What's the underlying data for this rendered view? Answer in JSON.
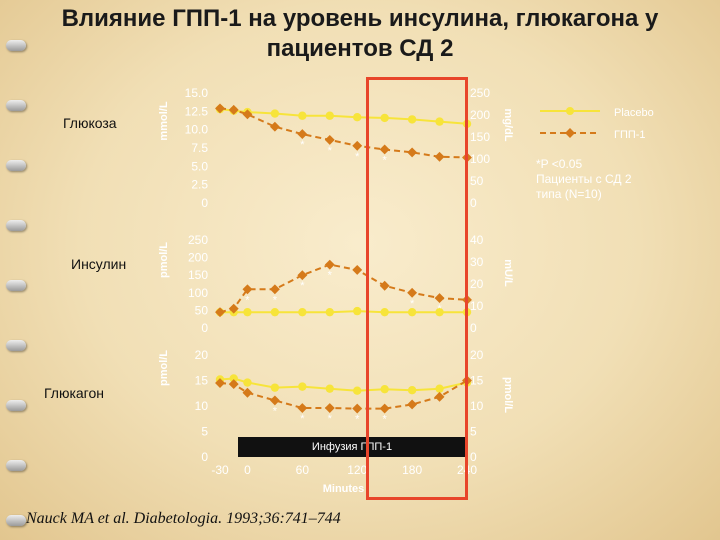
{
  "title": "Влияние ГПП-1 на уровень инсулина, глюкагона у пациентов СД 2",
  "legend": {
    "placebo": "Placebo",
    "glp1": "ГПП-1"
  },
  "note": {
    "pvalue": "*P <0.05",
    "patients1": "Пациенты с СД 2",
    "patients2": "типа (N=10)"
  },
  "infusion_label": "Инфузия ГПП-1",
  "citation": "Nauck MA et al. Diabetologia. 1993;36:741–744",
  "colors": {
    "placebo": "#f7e43a",
    "glp1": "#d57a1a",
    "highlight": "#e8452a",
    "axis_text": "#ffffff"
  },
  "chart_data": [
    {
      "type": "line",
      "row_label": "Глюкоза",
      "ylabel": "mmol/L",
      "ylabel_right": "mg/dL",
      "yticks": [
        "15.0",
        "12.5",
        "10.0",
        "7.5",
        "5.0",
        "2.5",
        "0"
      ],
      "yticks_right": [
        "250",
        "200",
        "150",
        "100",
        "50",
        "0"
      ],
      "ylim": [
        0,
        15
      ],
      "x": [
        -30,
        -15,
        0,
        30,
        60,
        90,
        120,
        150,
        180,
        210,
        240
      ],
      "series": [
        {
          "name": "Placebo",
          "values": [
            12.8,
            12.6,
            12.4,
            12.2,
            11.9,
            11.9,
            11.7,
            11.6,
            11.4,
            11.1,
            10.8
          ]
        },
        {
          "name": "ГПП-1",
          "values": [
            12.9,
            12.7,
            12.1,
            10.4,
            9.4,
            8.6,
            7.8,
            7.3,
            6.9,
            6.3,
            6.2
          ]
        }
      ],
      "stars": [
        60,
        90,
        120,
        150
      ]
    },
    {
      "type": "line",
      "row_label": "Инсулин",
      "ylabel": "pmol/L",
      "ylabel_right": "mU/L",
      "yticks": [
        "250",
        "200",
        "150",
        "100",
        "50",
        "0"
      ],
      "yticks_right": [
        "40",
        "30",
        "20",
        "10",
        "0"
      ],
      "ylim": [
        0,
        250
      ],
      "x": [
        -30,
        -15,
        0,
        30,
        60,
        90,
        120,
        150,
        180,
        210,
        240
      ],
      "series": [
        {
          "name": "Placebo",
          "values": [
            45,
            45,
            45,
            45,
            45,
            45,
            48,
            45,
            45,
            45,
            45
          ]
        },
        {
          "name": "ГПП-1",
          "values": [
            45,
            55,
            110,
            110,
            150,
            180,
            165,
            120,
            100,
            85,
            80
          ]
        }
      ],
      "stars": [
        0,
        30,
        60,
        90,
        180,
        210
      ]
    },
    {
      "type": "line",
      "row_label": "Глюкагон",
      "ylabel": "pmol/L",
      "ylabel_right": "pmol/L",
      "yticks": [
        "20",
        "15",
        "10",
        "5",
        "0"
      ],
      "yticks_right": [
        "20",
        "15",
        "10",
        "5",
        "0"
      ],
      "ylim": [
        0,
        20
      ],
      "x": [
        -30,
        -15,
        0,
        30,
        60,
        90,
        120,
        150,
        180,
        210,
        240
      ],
      "series": [
        {
          "name": "Placebo",
          "values": [
            15.2,
            15.4,
            14.6,
            13.6,
            13.8,
            13.4,
            13.0,
            13.3,
            13.1,
            13.4,
            14.6
          ]
        },
        {
          "name": "ГПП-1",
          "values": [
            14.5,
            14.3,
            12.6,
            11.1,
            9.6,
            9.6,
            9.5,
            9.5,
            10.3,
            11.8,
            15.0
          ]
        }
      ],
      "stars": [
        30,
        60,
        90,
        120,
        150
      ]
    }
  ],
  "xaxis": {
    "ticks": [
      "-30",
      "0",
      "60",
      "120",
      "180",
      "240"
    ],
    "tick_values": [
      -30,
      0,
      60,
      120,
      180,
      240
    ],
    "label": "Minutes"
  }
}
